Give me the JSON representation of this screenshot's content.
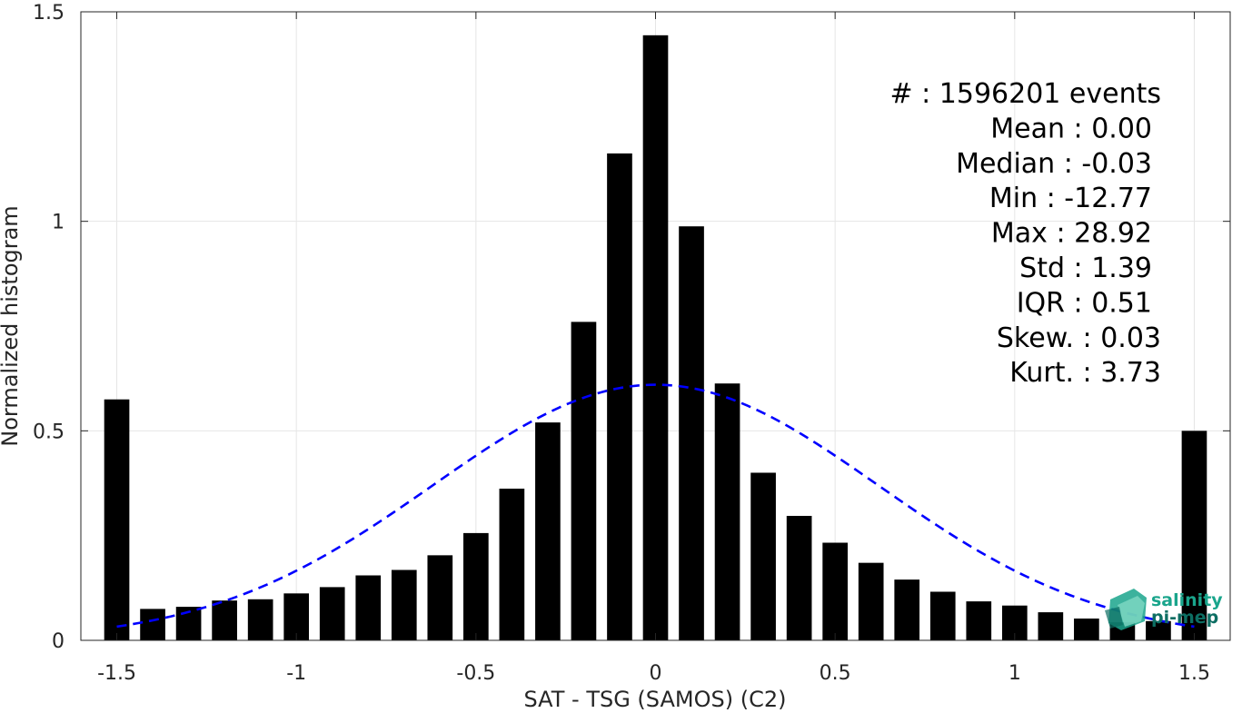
{
  "chart_data": {
    "type": "bar",
    "xlabel": "SAT - TSG (SAMOS) (C2)",
    "ylabel": "Normalized histogram",
    "xlim": [
      -1.6,
      1.6
    ],
    "ylim": [
      0,
      1.5
    ],
    "grid": true,
    "x_ticks": [
      -1.5,
      -1,
      -0.5,
      0,
      0.5,
      1,
      1.5
    ],
    "x_tick_labels": [
      "-1.5",
      "-1",
      "-0.5",
      "0",
      "0.5",
      "1",
      "1.5"
    ],
    "y_ticks": [
      0,
      0.5,
      1,
      1.5
    ],
    "y_tick_labels": [
      "0",
      "0.5",
      "1",
      "1.5"
    ],
    "bar_width": 0.07,
    "bars": {
      "x": [
        -1.5,
        -1.4,
        -1.3,
        -1.2,
        -1.1,
        -1.0,
        -0.9,
        -0.8,
        -0.7,
        -0.6,
        -0.5,
        -0.4,
        -0.3,
        -0.2,
        -0.1,
        0.0,
        0.1,
        0.2,
        0.3,
        0.4,
        0.5,
        0.6,
        0.7,
        0.8,
        0.9,
        1.0,
        1.1,
        1.2,
        1.3,
        1.4,
        1.5
      ],
      "values": [
        0.575,
        0.075,
        0.08,
        0.095,
        0.098,
        0.112,
        0.127,
        0.155,
        0.168,
        0.203,
        0.256,
        0.362,
        0.52,
        0.76,
        1.162,
        1.444,
        0.988,
        0.613,
        0.4,
        0.297,
        0.233,
        0.185,
        0.145,
        0.116,
        0.093,
        0.083,
        0.067,
        0.052,
        0.043,
        0.046,
        0.5
      ],
      "color": "#000000"
    },
    "fit_curve": {
      "style": "dashed",
      "color": "#0000ff",
      "mean": 0.0,
      "peak": 0.61,
      "sigma": 0.62,
      "x_range": [
        -1.5,
        1.5
      ]
    },
    "stats": [
      {
        "label": "#  ",
        "value": ": 1596201 events"
      },
      {
        "label": "Mean ",
        "value": ": 0.00"
      },
      {
        "label": "Median ",
        "value": ": -0.03"
      },
      {
        "label": "Min ",
        "value": ": -12.77"
      },
      {
        "label": "Max ",
        "value": ": 28.92"
      },
      {
        "label": "Std ",
        "value": ": 1.39"
      },
      {
        "label": "IQR ",
        "value": ": 0.51"
      },
      {
        "label": "Skew. ",
        "value": ": 0.03"
      },
      {
        "label": "Kurt. ",
        "value": ": 3.73"
      }
    ]
  },
  "logo": {
    "line1": "salinity",
    "line2": "pi-mep",
    "color1": "#1aa58c",
    "color2": "#0d6e63"
  }
}
